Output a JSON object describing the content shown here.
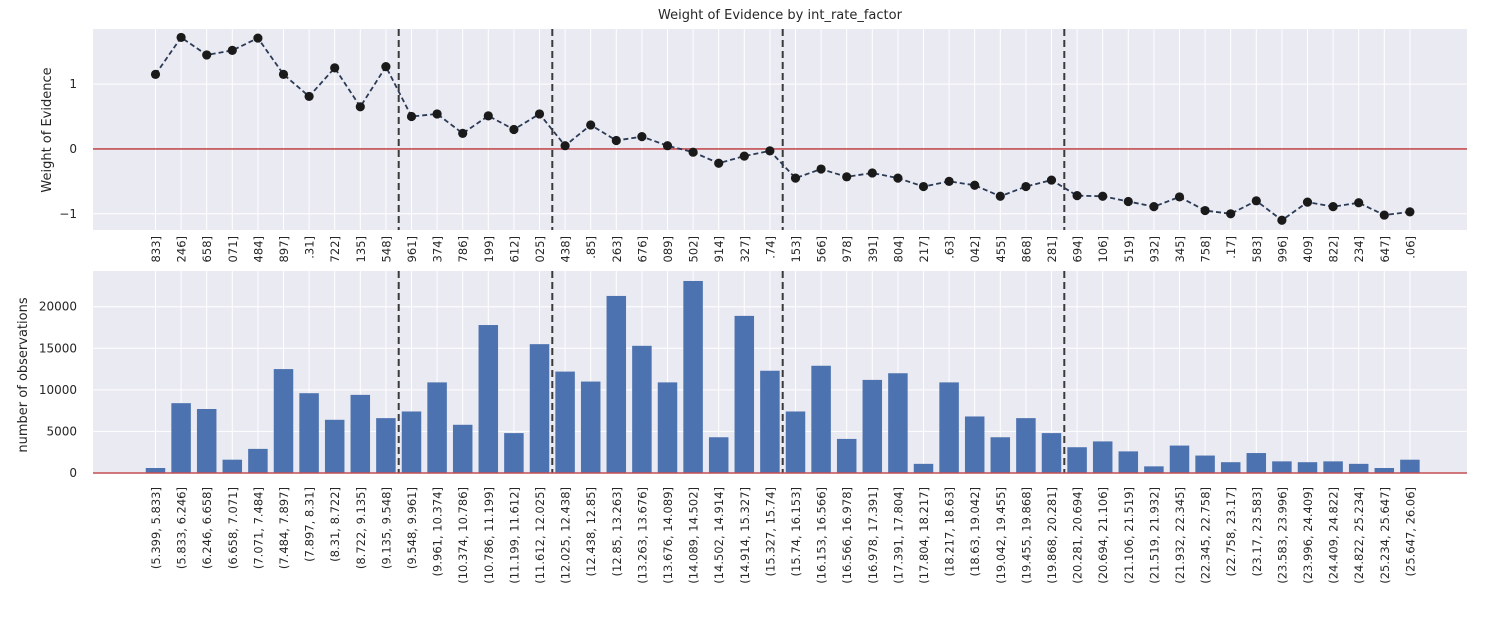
{
  "chart_data": [
    {
      "type": "line",
      "title": "Weight of Evidence by int_rate_factor",
      "xlabel": "",
      "ylabel": "Weight of Evidence",
      "ylim": [
        -1.25,
        1.85
      ],
      "yticks": [
        -1,
        0,
        1
      ],
      "ytick_labels": [
        "−1",
        "0",
        "1"
      ],
      "grid": true,
      "background": "#eaeaf2",
      "line_color": "#2b3a55",
      "marker_color": "#1a1a1a",
      "reference_line": {
        "y": 0,
        "color": "#c44e52"
      },
      "divider_after_index": [
        9,
        15,
        24,
        35
      ],
      "categories": [
        "(5.399, 5.833]",
        "(5.833, 6.246]",
        "(6.246, 6.658]",
        "(6.658, 7.071]",
        "(7.071, 7.484]",
        "(7.484, 7.897]",
        "(7.897, 8.31]",
        "(8.31, 8.722]",
        "(8.722, 9.135]",
        "(9.135, 9.548]",
        "(9.548, 9.961]",
        "(9.961, 10.374]",
        "(10.374, 10.786]",
        "(10.786, 11.199]",
        "(11.199, 11.612]",
        "(11.612, 12.025]",
        "(12.025, 12.438]",
        "(12.438, 12.85]",
        "(12.85, 13.263]",
        "(13.263, 13.676]",
        "(13.676, 14.089]",
        "(14.089, 14.502]",
        "(14.502, 14.914]",
        "(14.914, 15.327]",
        "(15.327, 15.74]",
        "(15.74, 16.153]",
        "(16.153, 16.566]",
        "(16.566, 16.978]",
        "(16.978, 17.391]",
        "(17.391, 17.804]",
        "(17.804, 18.217]",
        "(18.217, 18.63]",
        "(18.63, 19.042]",
        "(19.042, 19.455]",
        "(19.455, 19.868]",
        "(19.868, 20.281]",
        "(20.281, 20.694]",
        "(20.694, 21.106]",
        "(21.106, 21.519]",
        "(21.519, 21.932]",
        "(21.932, 22.345]",
        "(22.345, 22.758]",
        "(22.758, 23.17]",
        "(23.17, 23.583]",
        "(23.583, 23.996]",
        "(23.996, 24.409]",
        "(24.409, 24.822]",
        "(24.822, 25.234]",
        "(25.234, 25.647]",
        "(25.647, 26.06]"
      ],
      "tick_label_fragments": [
        "833]",
        "246]",
        "658]",
        "071]",
        "484]",
        "897]",
        ".31]",
        "722]",
        "135]",
        "548]",
        "961]",
        "374]",
        "786]",
        "199]",
        "612]",
        "025]",
        "438]",
        ".85]",
        "263]",
        "676]",
        "089]",
        "502]",
        "914]",
        "327]",
        ".74]",
        "153]",
        "566]",
        "978]",
        "391]",
        "804]",
        "217]",
        ".63]",
        "042]",
        "455]",
        "868]",
        "281]",
        "694]",
        "106]",
        "519]",
        "932]",
        "345]",
        "758]",
        ".17]",
        "583]",
        "996]",
        "409]",
        "822]",
        "234]",
        "647]",
        ".06]"
      ],
      "series": [
        {
          "values": [
            1.15,
            1.72,
            1.45,
            1.52,
            1.71,
            1.15,
            0.81,
            1.25,
            0.65,
            1.27,
            0.5,
            0.54,
            0.24,
            0.51,
            0.3,
            0.54,
            0.05,
            0.37,
            0.13,
            0.19,
            0.05,
            -0.05,
            -0.22,
            -0.11,
            -0.03,
            -0.45,
            -0.31,
            -0.43,
            -0.37,
            -0.45,
            -0.58,
            -0.5,
            -0.56,
            -0.73,
            -0.58,
            -0.48,
            -0.72,
            -0.73,
            -0.81,
            -0.89,
            -0.74,
            -0.95,
            -1.0,
            -0.8,
            -1.1,
            -0.82,
            -0.89,
            -0.83,
            -1.02,
            -0.97
          ]
        }
      ]
    },
    {
      "type": "bar",
      "title": "",
      "xlabel": "",
      "ylabel": "number of observations",
      "ylim": [
        0,
        24300
      ],
      "yticks": [
        0,
        5000,
        10000,
        15000,
        20000
      ],
      "ytick_labels": [
        "0",
        "5000",
        "10000",
        "15000",
        "20000"
      ],
      "grid": true,
      "background": "#eaeaf2",
      "bar_color": "#4c72b0",
      "baseline_color": "#c44e52",
      "divider_after_index": [
        9,
        15,
        24,
        35
      ],
      "categories": [
        "(5.399, 5.833]",
        "(5.833, 6.246]",
        "(6.246, 6.658]",
        "(6.658, 7.071]",
        "(7.071, 7.484]",
        "(7.484, 7.897]",
        "(7.897, 8.31]",
        "(8.31, 8.722]",
        "(8.722, 9.135]",
        "(9.135, 9.548]",
        "(9.548, 9.961]",
        "(9.961, 10.374]",
        "(10.374, 10.786]",
        "(10.786, 11.199]",
        "(11.199, 11.612]",
        "(11.612, 12.025]",
        "(12.025, 12.438]",
        "(12.438, 12.85]",
        "(12.85, 13.263]",
        "(13.263, 13.676]",
        "(13.676, 14.089]",
        "(14.089, 14.502]",
        "(14.502, 14.914]",
        "(14.914, 15.327]",
        "(15.327, 15.74]",
        "(15.74, 16.153]",
        "(16.153, 16.566]",
        "(16.566, 16.978]",
        "(16.978, 17.391]",
        "(17.391, 17.804]",
        "(17.804, 18.217]",
        "(18.217, 18.63]",
        "(18.63, 19.042]",
        "(19.042, 19.455]",
        "(19.455, 19.868]",
        "(19.868, 20.281]",
        "(20.281, 20.694]",
        "(20.694, 21.106]",
        "(21.106, 21.519]",
        "(21.519, 21.932]",
        "(21.932, 22.345]",
        "(22.345, 22.758]",
        "(22.758, 23.17]",
        "(23.17, 23.583]",
        "(23.583, 23.996]",
        "(23.996, 24.409]",
        "(24.409, 24.822]",
        "(24.822, 25.234]",
        "(25.234, 25.647]",
        "(25.647, 26.06]"
      ],
      "values": [
        600,
        8400,
        7700,
        1600,
        2900,
        12500,
        9600,
        6400,
        9400,
        6600,
        7400,
        10900,
        5800,
        17800,
        4800,
        15500,
        12200,
        11000,
        21300,
        15300,
        10900,
        23100,
        4300,
        18900,
        12300,
        7400,
        12900,
        4100,
        11200,
        12000,
        1100,
        10900,
        6800,
        4300,
        6600,
        4800,
        3100,
        3800,
        2600,
        800,
        3300,
        2100,
        1300,
        2400,
        1400,
        1300,
        1400,
        1100,
        600,
        1600
      ]
    }
  ]
}
